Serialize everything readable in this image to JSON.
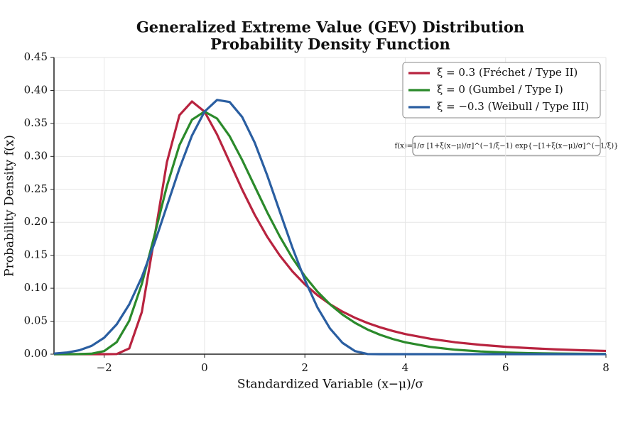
{
  "chart_data": {
    "type": "line",
    "title": "Generalized Extreme Value (GEV) Distribution",
    "subtitle": "Probability Density Function",
    "x_label": "Standardized Variable  (x−μ)/σ",
    "y_label": "Probability Density  f(x)",
    "annotation": "f(x)=1/σ [1+ξ(x−μ)/σ]^(−1/ξ−1) exp{−[1+ξ(x−μ)/σ]^(−1/ξ)}",
    "x": [
      -3,
      -2.75,
      -2.5,
      -2.25,
      -2,
      -1.75,
      -1.5,
      -1.25,
      -1,
      -0.75,
      -0.5,
      -0.25,
      0,
      0.25,
      0.5,
      0.75,
      1,
      1.25,
      1.5,
      1.75,
      2,
      2.25,
      2.5,
      2.75,
      3,
      3.25,
      3.5,
      3.75,
      4,
      4.5,
      5,
      5.5,
      6,
      6.5,
      7,
      7.5,
      8
    ],
    "series": [
      {
        "name": "ξ = 0.3 (Fréchet / Type II)",
        "color": "#b8233f",
        "values": [
          0,
          0,
          0,
          0,
          0,
          0.0002,
          0.0087,
          0.0637,
          0.1759,
          0.2911,
          0.3625,
          0.3833,
          0.3679,
          0.3332,
          0.2914,
          0.2496,
          0.2114,
          0.178,
          0.1496,
          0.1257,
          0.1059,
          0.0894,
          0.0758,
          0.0645,
          0.0551,
          0.0472,
          0.0407,
          0.0352,
          0.0305,
          0.0233,
          0.018,
          0.0141,
          0.0112,
          0.009,
          0.0073,
          0.0059,
          0.0049
        ]
      },
      {
        "name": "ξ = 0 (Gumbel / Type I)",
        "color": "#2b8a2b",
        "values": [
          0,
          0,
          0.0001,
          0.0007,
          0.0046,
          0.0182,
          0.0507,
          0.1064,
          0.1794,
          0.2549,
          0.317,
          0.3556,
          0.3679,
          0.3574,
          0.3307,
          0.2945,
          0.2546,
          0.2151,
          0.1785,
          0.146,
          0.1182,
          0.0949,
          0.0756,
          0.06,
          0.0474,
          0.0373,
          0.0293,
          0.023,
          0.018,
          0.011,
          0.0067,
          0.0041,
          0.0025,
          0.0015,
          0.0009,
          0.0006,
          0.0003
        ]
      },
      {
        "name": "ξ = −0.3 (Weibull / Type III)",
        "color": "#2a5ea1",
        "values": [
          0.0009,
          0.0024,
          0.0058,
          0.0126,
          0.0249,
          0.0452,
          0.0755,
          0.1167,
          0.1677,
          0.2246,
          0.2816,
          0.3316,
          0.3679,
          0.3856,
          0.3825,
          0.3598,
          0.3209,
          0.2711,
          0.2163,
          0.1619,
          0.1124,
          0.0709,
          0.039,
          0.0171,
          0.0046,
          0.0002,
          0,
          0,
          0,
          0,
          0,
          0,
          0,
          0,
          0,
          0,
          0
        ]
      }
    ],
    "xlim": [
      -3,
      8
    ],
    "ylim": [
      0,
      0.45
    ],
    "xticks": [
      {
        "value": -2,
        "label": "−2"
      },
      0,
      2,
      4,
      6,
      8
    ],
    "yticks": [
      {
        "value": 0,
        "label": "0.00"
      },
      0.05,
      {
        "value": 0.1,
        "label": "0.10"
      },
      0.15,
      {
        "value": 0.2,
        "label": "0.20"
      },
      0.25,
      {
        "value": 0.3,
        "label": "0.30"
      },
      0.35,
      {
        "value": 0.4,
        "label": "0.40"
      },
      0.45
    ],
    "grid": true,
    "legend": "upper right"
  }
}
